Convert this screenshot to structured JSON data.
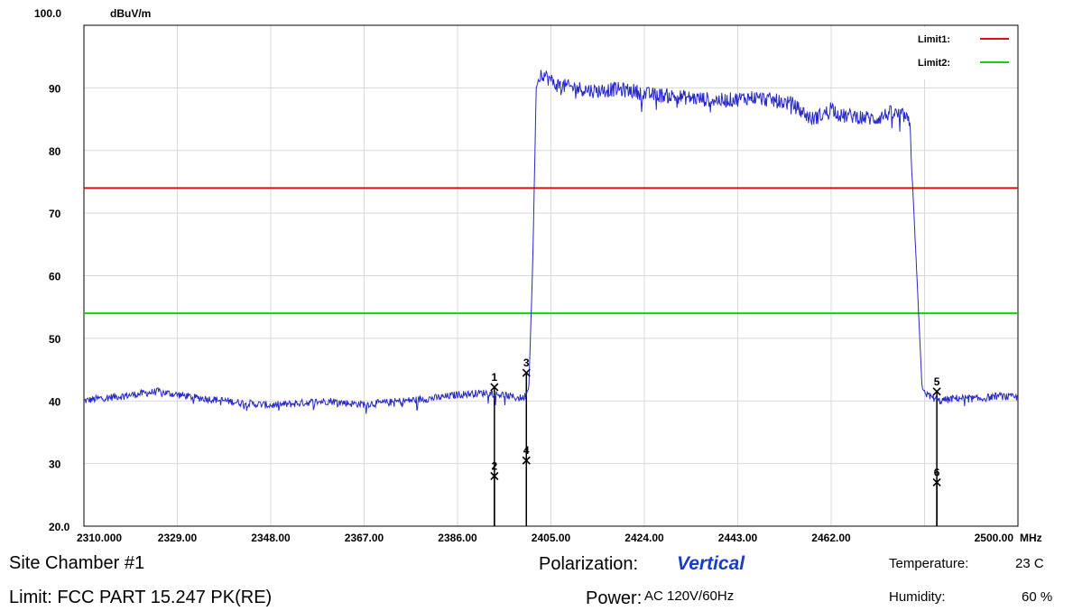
{
  "chart_data": {
    "type": "line",
    "ylabel": "dBuV/m",
    "xunit": "MHz",
    "xlim": [
      2310,
      2500
    ],
    "ylim": [
      20,
      100
    ],
    "x_tick_labels": [
      "2310.000",
      "2329.00",
      "2348.00",
      "2367.00",
      "2386.00",
      "2405.00",
      "2424.00",
      "2443.00",
      "2462.00",
      "2500.00"
    ],
    "y_tick_labels": [
      "100.0",
      "90",
      "80",
      "70",
      "60",
      "50",
      "40",
      "30",
      "20.0"
    ],
    "x_ticks": [
      2310,
      2329,
      2348,
      2367,
      2386,
      2405,
      2424,
      2443,
      2462,
      2500
    ],
    "y_ticks": [
      100,
      90,
      80,
      70,
      60,
      50,
      40,
      30,
      20
    ],
    "grid": true,
    "legend_position": "top-right",
    "limits": [
      {
        "name": "Limit1:",
        "value": 74,
        "color": "#e01010"
      },
      {
        "name": "Limit2:",
        "value": 54,
        "color": "#10d010"
      }
    ],
    "trace": {
      "color": "#2828c8",
      "points": [
        [
          2310,
          40
        ],
        [
          2314,
          40.5
        ],
        [
          2318,
          40.8
        ],
        [
          2322,
          41.2
        ],
        [
          2325,
          41.5
        ],
        [
          2329,
          41
        ],
        [
          2333,
          40.5
        ],
        [
          2337,
          40.2
        ],
        [
          2341,
          39.8
        ],
        [
          2345,
          39.5
        ],
        [
          2348,
          39.3
        ],
        [
          2352,
          39.5
        ],
        [
          2356,
          39.8
        ],
        [
          2360,
          40
        ],
        [
          2364,
          39.6
        ],
        [
          2367,
          39.5
        ],
        [
          2371,
          39.7
        ],
        [
          2375,
          40
        ],
        [
          2379,
          40.3
        ],
        [
          2383,
          40.6
        ],
        [
          2386,
          41
        ],
        [
          2389,
          41.2
        ],
        [
          2392,
          41.3
        ],
        [
          2395,
          41
        ],
        [
          2398,
          40.5
        ],
        [
          2399.5,
          40.5
        ],
        [
          2400.5,
          42
        ],
        [
          2401.3,
          62
        ],
        [
          2402,
          90
        ],
        [
          2403,
          92.5
        ],
        [
          2406,
          90.5
        ],
        [
          2410,
          90
        ],
        [
          2414,
          89.5
        ],
        [
          2418,
          89.8
        ],
        [
          2422,
          89.5
        ],
        [
          2424,
          89
        ],
        [
          2428,
          88.8
        ],
        [
          2432,
          88.5
        ],
        [
          2436,
          88.2
        ],
        [
          2440,
          88
        ],
        [
          2443,
          88.2
        ],
        [
          2446,
          88.5
        ],
        [
          2450,
          88
        ],
        [
          2454,
          87.5
        ],
        [
          2458,
          85
        ],
        [
          2461,
          86
        ],
        [
          2462,
          87
        ],
        [
          2464,
          85.5
        ],
        [
          2467,
          85.5
        ],
        [
          2471,
          85
        ],
        [
          2474,
          86
        ],
        [
          2477,
          85.5
        ],
        [
          2478,
          84
        ],
        [
          2479.5,
          59
        ],
        [
          2480.5,
          42
        ],
        [
          2481.5,
          41
        ],
        [
          2484,
          40
        ],
        [
          2488,
          40.5
        ],
        [
          2492,
          40.3
        ],
        [
          2496,
          40.8
        ],
        [
          2500,
          40.5
        ]
      ]
    },
    "markers": [
      {
        "label": "1",
        "x": 2393.5,
        "y": 42.2
      },
      {
        "label": "2",
        "x": 2393.5,
        "y": 28
      },
      {
        "label": "3",
        "x": 2400,
        "y": 44.5
      },
      {
        "label": "4",
        "x": 2400,
        "y": 30.5
      },
      {
        "label": "5",
        "x": 2483.5,
        "y": 41.5
      },
      {
        "label": "6",
        "x": 2483.5,
        "y": 27
      }
    ]
  },
  "info": {
    "site": "Site  Chamber #1",
    "limit": "Limit:  FCC PART 15.247 PK(RE)",
    "polarization_label": "Polarization:",
    "polarization_value": "Vertical",
    "power_label": "Power:",
    "power_value": "AC 120V/60Hz",
    "temperature_label": "Temperature:",
    "temperature_value": "23 C",
    "humidity_label": "Humidity:",
    "humidity_value": "60 %"
  }
}
